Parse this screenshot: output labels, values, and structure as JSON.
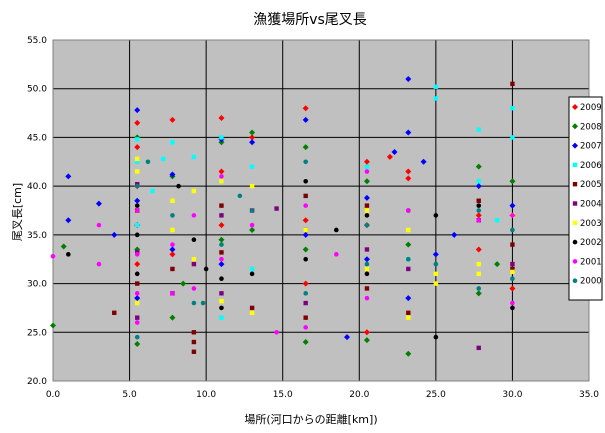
{
  "chart_data": {
    "type": "scatter",
    "title": "漁獲場所vs尾叉長",
    "xlabel": "場所(河口からの距離[km])",
    "ylabel": "尾叉長[cm]",
    "xlim": [
      0,
      35
    ],
    "ylim": [
      20,
      55
    ],
    "xticks": [
      "0.0",
      "5.0",
      "10.0",
      "15.0",
      "20.0",
      "25.0",
      "30.0",
      "35.0"
    ],
    "yticks": [
      "20.0",
      "25.0",
      "30.0",
      "35.0",
      "40.0",
      "45.0",
      "50.0",
      "55.0"
    ],
    "grid": true,
    "plot_background": "#c0c0c0",
    "legend_position": "right",
    "series": [
      {
        "name": "2009",
        "color": "#ff0000",
        "marker": "diamond",
        "x": [
          5.5,
          5.5,
          5.5,
          5.5,
          5.5,
          7.8,
          7.8,
          11.0,
          11.0,
          11.0,
          13.0,
          16.5,
          16.5,
          16.5,
          20.5,
          20.5,
          20.5,
          22.0,
          23.2,
          23.2,
          27.8,
          27.8,
          30.0,
          30.0
        ],
        "y": [
          46.5,
          44.0,
          40.0,
          36.0,
          32.0,
          46.8,
          33.0,
          47.0,
          41.5,
          36.0,
          45.0,
          48.0,
          36.5,
          30.0,
          42.5,
          36.0,
          25.0,
          43.0,
          41.5,
          40.8,
          37.0,
          33.5,
          37.0,
          29.5
        ]
      },
      {
        "name": "2008",
        "color": "#008000",
        "marker": "diamond",
        "x": [
          0.0,
          0.7,
          5.5,
          5.5,
          5.5,
          7.8,
          7.8,
          8.5,
          11.0,
          11.0,
          13.0,
          13.0,
          16.5,
          16.5,
          16.5,
          20.5,
          20.5,
          23.2,
          23.2,
          27.8,
          27.8,
          29.0,
          30.0
        ],
        "y": [
          25.7,
          33.8,
          45.0,
          33.5,
          23.8,
          41.0,
          26.5,
          30.0,
          44.5,
          34.5,
          45.5,
          35.5,
          44.0,
          33.5,
          24.0,
          40.5,
          24.2,
          34.0,
          22.8,
          42.0,
          29.0,
          32.0,
          40.5
        ]
      },
      {
        "name": "2007",
        "color": "#0000ff",
        "marker": "diamond",
        "x": [
          1.0,
          1.0,
          3.0,
          4.0,
          5.5,
          5.5,
          5.5,
          7.8,
          7.8,
          11.0,
          11.0,
          13.0,
          16.5,
          16.5,
          19.2,
          20.5,
          20.5,
          22.3,
          23.2,
          23.2,
          23.2,
          24.2,
          25.0,
          26.2,
          27.8,
          30.0
        ],
        "y": [
          41.0,
          36.5,
          38.2,
          35.0,
          47.8,
          38.5,
          28.5,
          41.2,
          33.5,
          44.8,
          32.0,
          44.5,
          46.8,
          35.0,
          24.5,
          38.8,
          32.5,
          43.5,
          51.0,
          45.5,
          28.5,
          42.5,
          33.0,
          35.0,
          40.0,
          38.0
        ]
      },
      {
        "name": "2006",
        "color": "#00ffff",
        "marker": "square",
        "x": [
          5.5,
          5.5,
          5.5,
          6.5,
          7.2,
          7.8,
          9.2,
          11.0,
          11.0,
          11.0,
          13.0,
          13.0,
          16.5,
          20.5,
          23.2,
          25.0,
          25.0,
          27.8,
          27.8,
          29.0,
          30.0,
          30.0
        ],
        "y": [
          44.8,
          42.5,
          36.0,
          39.5,
          42.8,
          44.5,
          43.0,
          45.0,
          40.5,
          26.5,
          42.0,
          31.5,
          39.0,
          42.0,
          32.5,
          50.2,
          49.0,
          45.8,
          40.5,
          36.5,
          48.0,
          45.0
        ]
      },
      {
        "name": "2005",
        "color": "#800000",
        "marker": "square",
        "x": [
          4.0,
          5.5,
          5.5,
          7.8,
          9.2,
          9.2,
          9.2,
          11.0,
          11.0,
          13.0,
          16.5,
          16.5,
          20.5,
          20.5,
          23.2,
          27.8,
          30.0,
          30.0,
          30.0
        ],
        "y": [
          27.0,
          37.5,
          30.0,
          31.5,
          25.0,
          24.0,
          23.0,
          38.0,
          33.2,
          27.5,
          39.0,
          26.5,
          38.0,
          29.5,
          27.0,
          38.5,
          50.5,
          34.0,
          31.5
        ]
      },
      {
        "name": "2004",
        "color": "#800080",
        "marker": "square",
        "x": [
          5.5,
          5.5,
          5.5,
          7.8,
          9.2,
          11.0,
          11.0,
          13.0,
          14.6,
          16.5,
          16.5,
          20.5,
          23.2,
          27.8,
          27.8,
          30.0
        ],
        "y": [
          40.2,
          33.2,
          26.5,
          29.0,
          32.0,
          37.0,
          29.0,
          37.5,
          37.7,
          35.5,
          28.0,
          33.5,
          31.5,
          36.5,
          23.4,
          32.0
        ]
      },
      {
        "name": "2003",
        "color": "#ffff00",
        "marker": "square",
        "x": [
          5.5,
          5.5,
          5.5,
          7.8,
          7.8,
          9.2,
          9.2,
          11.0,
          11.0,
          13.0,
          13.0,
          16.5,
          20.5,
          20.5,
          23.2,
          23.2,
          25.0,
          25.0,
          27.8,
          27.8,
          30.0,
          30.0
        ],
        "y": [
          42.8,
          41.5,
          28.0,
          38.5,
          35.5,
          39.5,
          32.5,
          40.5,
          28.2,
          40.0,
          27.0,
          35.5,
          37.5,
          31.5,
          35.5,
          26.5,
          31.0,
          30.0,
          32.0,
          31.0,
          37.0,
          31.2
        ]
      },
      {
        "name": "2002",
        "color": "#000000",
        "marker": "circle",
        "x": [
          1.0,
          5.5,
          5.5,
          5.5,
          8.2,
          9.2,
          10.0,
          11.0,
          11.0,
          13.0,
          16.5,
          16.5,
          18.5,
          20.5,
          20.5,
          23.2,
          25.0,
          25.0,
          27.8,
          30.0
        ],
        "y": [
          33.0,
          38.0,
          35.0,
          31.0,
          40.0,
          34.5,
          31.5,
          30.5,
          27.5,
          31.0,
          40.5,
          32.5,
          35.5,
          37.0,
          31.0,
          37.5,
          37.0,
          24.5,
          38.0,
          27.5
        ]
      },
      {
        "name": "2001",
        "color": "#ff00ff",
        "marker": "circle",
        "x": [
          0.0,
          3.0,
          3.0,
          5.5,
          5.5,
          5.5,
          5.5,
          7.8,
          7.8,
          9.2,
          9.2,
          11.0,
          11.0,
          13.0,
          14.6,
          16.5,
          16.5,
          18.5,
          20.5,
          20.5,
          23.2,
          27.8,
          30.0,
          30.0
        ],
        "y": [
          32.8,
          36.0,
          32.0,
          37.5,
          33.0,
          29.0,
          26.0,
          34.0,
          29.0,
          37.0,
          29.5,
          41.0,
          32.5,
          36.0,
          25.0,
          38.0,
          25.5,
          33.0,
          41.5,
          28.5,
          37.5,
          36.5,
          37.0,
          28.0
        ]
      },
      {
        "name": "2000",
        "color": "#008080",
        "marker": "circle",
        "x": [
          5.5,
          5.5,
          6.2,
          7.8,
          9.2,
          9.8,
          11.0,
          12.2,
          13.0,
          16.5,
          16.5,
          20.5,
          20.5,
          23.2,
          25.0,
          27.8,
          27.8,
          30.0,
          30.0
        ],
        "y": [
          40.0,
          24.5,
          42.5,
          37.0,
          28.0,
          28.0,
          34.0,
          39.0,
          37.5,
          42.5,
          29.0,
          36.0,
          32.0,
          32.5,
          32.0,
          29.5,
          37.5,
          35.5,
          30.5
        ]
      }
    ]
  }
}
